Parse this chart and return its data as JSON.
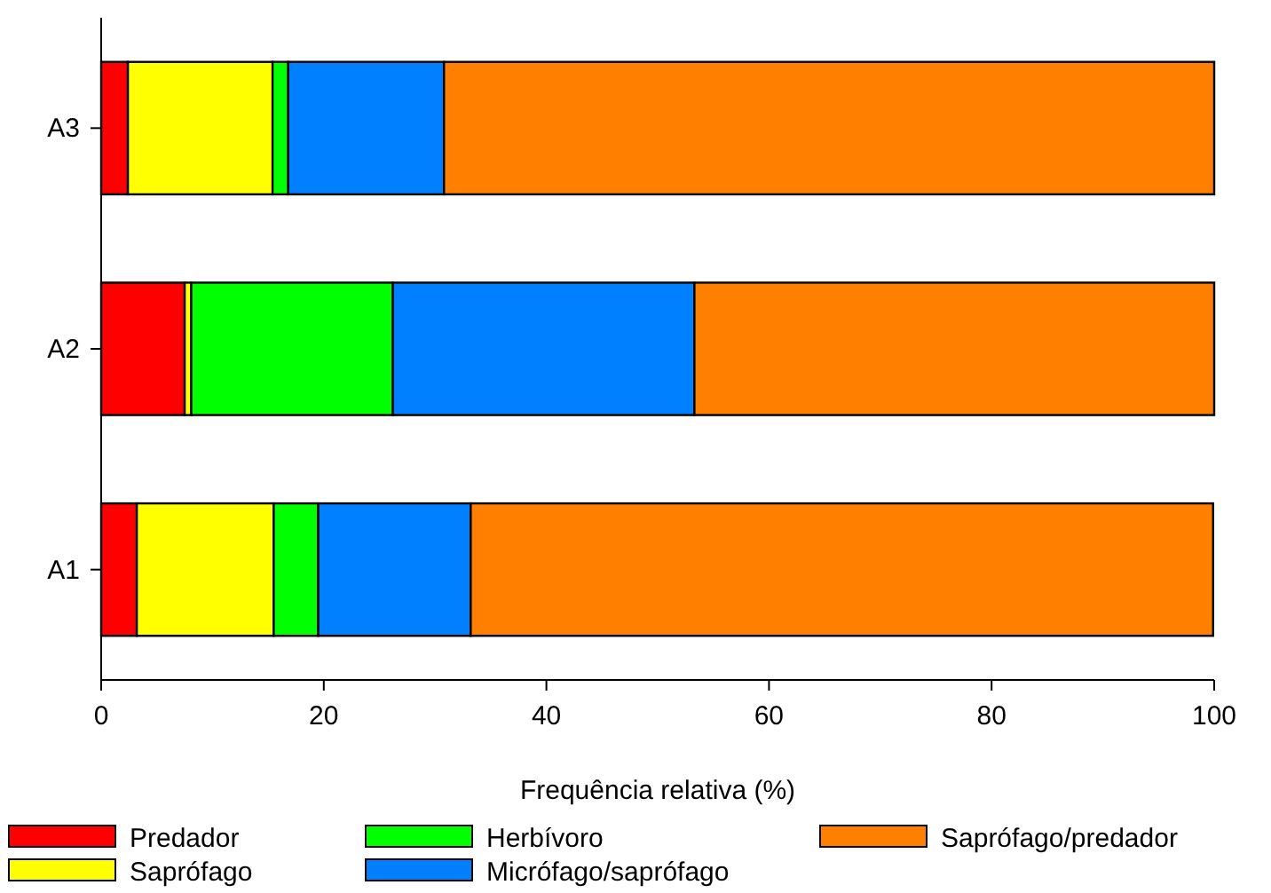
{
  "chart_data": {
    "type": "bar",
    "orientation": "horizontal",
    "stacked": true,
    "xlabel": "Frequência relativa (%)",
    "categories": [
      "A3",
      "A2",
      "A1"
    ],
    "xlim": [
      0,
      100
    ],
    "xticks": [
      0,
      20,
      40,
      60,
      80,
      100
    ],
    "legend": "bottom",
    "grid": false,
    "series": [
      {
        "name": "Predador",
        "color": "#ff0000",
        "values": [
          2.4,
          7.5,
          3.2
        ]
      },
      {
        "name": "Saprófago",
        "color": "#ffff00",
        "values": [
          13.0,
          0.6,
          12.3
        ]
      },
      {
        "name": "Herbívoro",
        "color": "#00ff00",
        "values": [
          1.4,
          18.1,
          4.0
        ]
      },
      {
        "name": "Micrófago/saprófago",
        "color": "#0080ff",
        "values": [
          14.0,
          27.1,
          13.7
        ]
      },
      {
        "name": "Saprófago/predador",
        "color": "#ff8000",
        "values": [
          69.2,
          46.7,
          66.7
        ]
      }
    ]
  }
}
